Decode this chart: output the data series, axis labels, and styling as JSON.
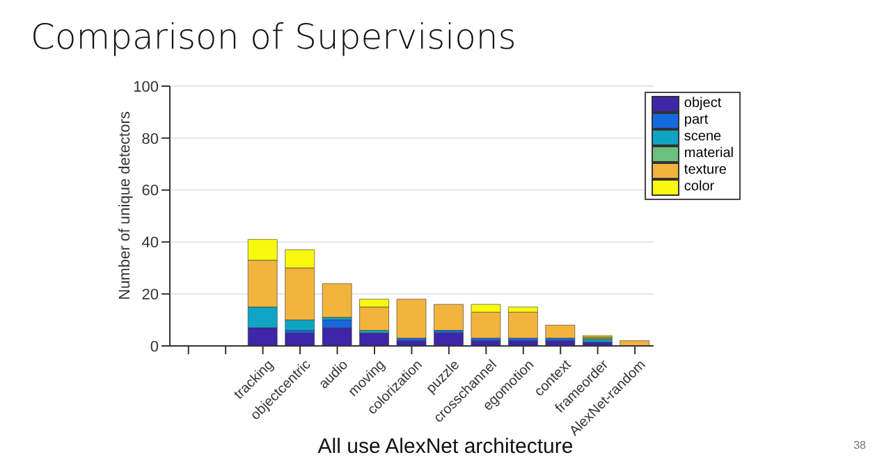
{
  "chart_data": {
    "type": "bar",
    "title": "Comparison of Supervisions",
    "ylabel": "Number of unique detectors",
    "annotations": [
      "All use AlexNet architecture",
      "38"
    ],
    "categories": [
      null,
      null,
      "tracking",
      "objectcentric",
      "audio",
      "moving",
      "colorization",
      "puzzle",
      "crosschannel",
      "egomotion",
      "context",
      "frameorder",
      "AlexNet-random"
    ],
    "stacked": true,
    "ylim": [
      0,
      100
    ],
    "yticks": [
      0,
      20,
      40,
      60,
      80,
      100
    ],
    "grid": "y",
    "legend": "top right",
    "series": [
      {
        "name": "object",
        "color": "#3e26a8",
        "values": [
          null,
          null,
          7,
          5,
          7,
          5,
          2,
          5,
          2,
          2,
          2,
          1.5,
          0
        ]
      },
      {
        "name": "part",
        "color": "#1469e0",
        "values": [
          null,
          null,
          0,
          1,
          3,
          0,
          1,
          1,
          1,
          1,
          1,
          0,
          0
        ]
      },
      {
        "name": "scene",
        "color": "#0fa4c4",
        "values": [
          null,
          null,
          8,
          4,
          1,
          1,
          0,
          0,
          0,
          0,
          0,
          1,
          0
        ]
      },
      {
        "name": "material",
        "color": "#6dbf7f",
        "values": [
          null,
          null,
          0,
          0,
          0,
          0,
          0,
          0,
          0,
          0,
          0,
          0.5,
          0
        ]
      },
      {
        "name": "texture",
        "color": "#f2b43c",
        "values": [
          null,
          null,
          18,
          20,
          13,
          9,
          15,
          10,
          10,
          10,
          5,
          0.5,
          2
        ]
      },
      {
        "name": "color",
        "color": "#f9f90f",
        "values": [
          null,
          null,
          8,
          7,
          0,
          3,
          0,
          0,
          3,
          2,
          0,
          0.5,
          0
        ]
      }
    ]
  }
}
